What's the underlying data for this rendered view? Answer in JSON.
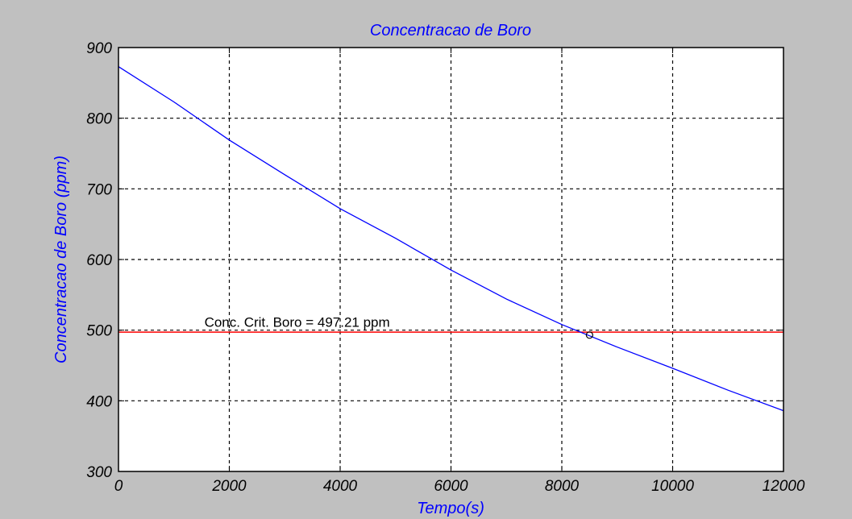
{
  "chart_data": {
    "type": "line",
    "title": "Concentracao de Boro",
    "xlabel": "Tempo(s)",
    "ylabel": "Concentracao de Boro (ppm)",
    "xlim": [
      0,
      12000
    ],
    "ylim": [
      300,
      900
    ],
    "xticks": [
      0,
      2000,
      4000,
      6000,
      8000,
      10000,
      12000
    ],
    "yticks": [
      300,
      400,
      500,
      600,
      700,
      800,
      900
    ],
    "grid": true,
    "series": [
      {
        "color": "#0000ff",
        "x": [
          0,
          1000,
          2000,
          3000,
          4000,
          5000,
          6000,
          7000,
          8000,
          9000,
          10000,
          11000,
          12000
        ],
        "y": [
          873,
          823,
          769,
          720,
          672,
          630,
          585,
          544,
          508,
          476,
          446,
          415,
          386
        ]
      }
    ],
    "reference_line": {
      "y": 497.21,
      "color": "#ff0000"
    },
    "marker": {
      "x": 8500,
      "y": 493,
      "symbol": "o"
    },
    "annotation": {
      "text": "Conc. Crit. Boro = 497.21 ppm",
      "x": 1550,
      "y": 505
    }
  }
}
